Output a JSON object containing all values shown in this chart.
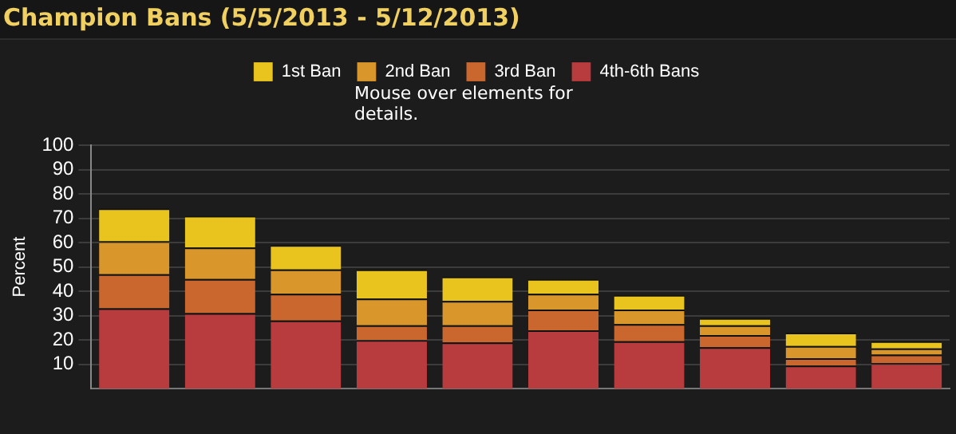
{
  "chart_data": {
    "type": "bar",
    "title": "Champion Bans (5/5/2013 - 5/12/2013)",
    "ylabel": "Percent",
    "annotations": [
      "Mouse over elements for details."
    ],
    "categories": [
      null,
      null,
      null,
      null,
      null,
      null,
      null,
      null,
      null,
      null
    ],
    "stacked": true,
    "legend": "top",
    "grid": "y",
    "ylim": [
      0,
      100
    ],
    "yticks": [
      10,
      20,
      30,
      40,
      50,
      60,
      70,
      80,
      90,
      100
    ],
    "series": [
      {
        "name": "4th-6th Bans",
        "color": "#b83c3e",
        "values": [
          33,
          31,
          28,
          20,
          19,
          24,
          19.5,
          17,
          9.5,
          10.5
        ]
      },
      {
        "name": "3rd Ban",
        "color": "#c9672f",
        "values": [
          14,
          14,
          11,
          6,
          7,
          8.5,
          7,
          5,
          3,
          3.5
        ]
      },
      {
        "name": "2nd Ban",
        "color": "#d9972b",
        "values": [
          13.5,
          13,
          10,
          11,
          10,
          6.5,
          6,
          4,
          5,
          2.5
        ]
      },
      {
        "name": "1st Ban",
        "color": "#e9c41f",
        "values": [
          13.5,
          13,
          10,
          12,
          10,
          6,
          6,
          3,
          5.5,
          3
        ]
      }
    ]
  }
}
